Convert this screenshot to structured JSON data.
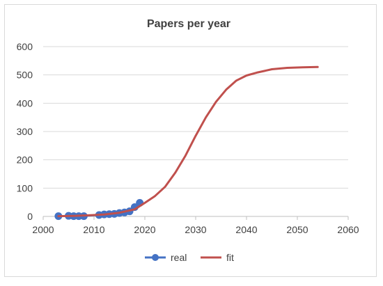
{
  "chart_data": {
    "type": "scatter",
    "title": "Papers per year",
    "xlabel": "",
    "ylabel": "",
    "xlim": [
      2000,
      2060
    ],
    "ylim": [
      0,
      600
    ],
    "xticks": [
      2000,
      2010,
      2020,
      2030,
      2040,
      2050,
      2060
    ],
    "yticks": [
      0,
      100,
      200,
      300,
      400,
      500,
      600
    ],
    "grid": "horizontal",
    "legend_position": "bottom",
    "series": [
      {
        "name": "real",
        "kind": "line-markers",
        "color": "#4472C4",
        "x": [
          2003,
          2005,
          2006,
          2007,
          2008,
          2011,
          2012,
          2013,
          2014,
          2015,
          2016,
          2017,
          2018,
          2019
        ],
        "y": [
          1,
          2,
          1,
          1,
          1,
          5,
          7,
          8,
          9,
          12,
          14,
          18,
          33,
          48
        ]
      },
      {
        "name": "fit",
        "kind": "line",
        "color": "#C0504D",
        "x": [
          2003,
          2006,
          2009,
          2012,
          2015,
          2018,
          2020,
          2022,
          2024,
          2026,
          2028,
          2030,
          2032,
          2034,
          2036,
          2038,
          2040,
          2042,
          2045,
          2048,
          2051,
          2054
        ],
        "y": [
          1,
          2,
          4,
          7,
          13,
          25,
          48,
          72,
          105,
          155,
          215,
          285,
          350,
          405,
          448,
          480,
          498,
          508,
          520,
          525,
          527,
          528
        ]
      }
    ]
  }
}
